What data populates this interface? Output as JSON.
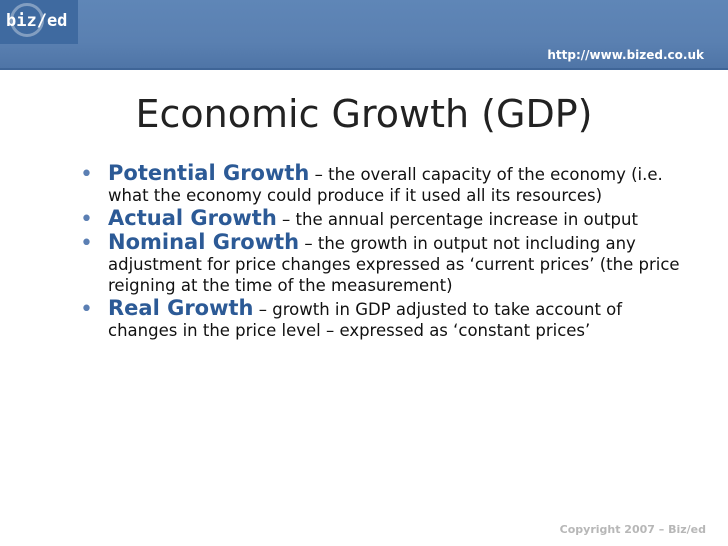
{
  "header": {
    "logo_text": "biz/ed",
    "url": "http://www.bized.co.uk"
  },
  "slide": {
    "title": "Economic Growth (GDP)",
    "bullets": [
      {
        "term": "Potential Growth",
        "description": " – the overall capacity of the economy (i.e. what the economy could produce if it used all its resources)"
      },
      {
        "term": "Actual Growth",
        "description": " – the annual percentage increase in output"
      },
      {
        "term": "Nominal Growth",
        "description": " – the growth in output not including any adjustment for price changes expressed as ‘current prices’ (the price reigning at the time of the measurement)"
      },
      {
        "term": "Real Growth",
        "description": " – growth in GDP adjusted to take account of changes in the price level – expressed as ‘constant prices’"
      }
    ]
  },
  "footer": {
    "copyright": "Copyright 2007 – Biz/ed"
  },
  "colors": {
    "header_blue": "#5a80b1",
    "term_blue": "#2c5a96",
    "bullet_blue": "#5b7fb3",
    "copyright_gray": "#b7b7b7"
  }
}
